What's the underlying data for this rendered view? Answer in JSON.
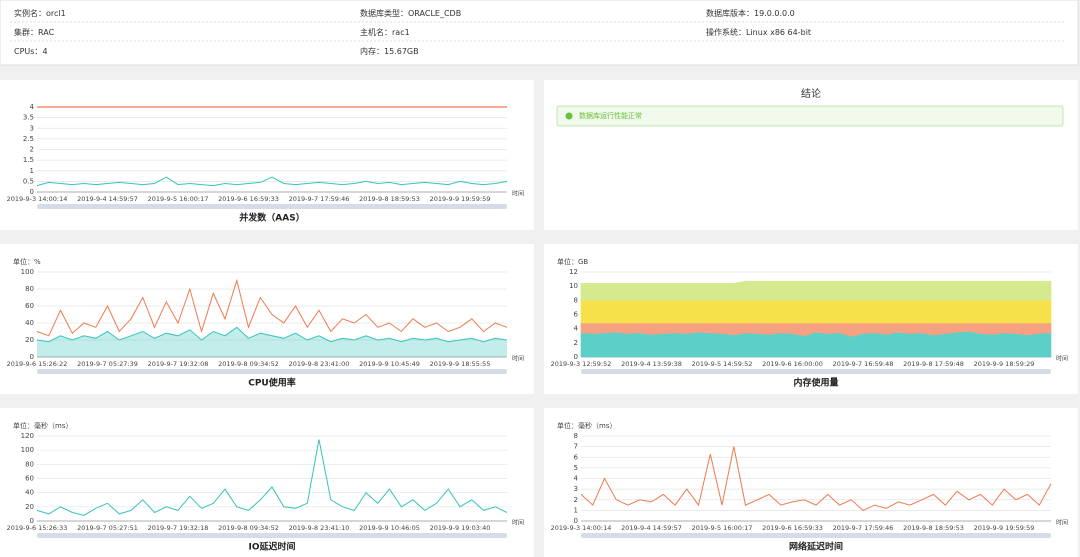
{
  "info": {
    "rows": [
      [
        {
          "label": "实例名：",
          "value": "orcl1"
        },
        {
          "label": "数据库类型：",
          "value": "ORACLE_CDB"
        },
        {
          "label": "数据库版本：",
          "value": "19.0.0.0.0"
        }
      ],
      [
        {
          "label": "集群：",
          "value": "RAC"
        },
        {
          "label": "主机名：",
          "value": "rac1"
        },
        {
          "label": "操作系统：",
          "value": "Linux x86 64-bit"
        }
      ],
      [
        {
          "label": "CPUs：",
          "value": "4"
        },
        {
          "label": "内存：",
          "value": "15.67GB"
        }
      ]
    ]
  },
  "conclusion": {
    "title": "结论",
    "message": "数据库运行性能正常"
  },
  "chart_data": [
    {
      "type": "line",
      "title": "并发数（AAS）",
      "xlabel": "时间",
      "categories": [
        "2019-9-3 14:00:14",
        null,
        null,
        null,
        null,
        null,
        "2019-9-4 14:59:57",
        null,
        null,
        null,
        null,
        null,
        "2019-9-5 16:00:17",
        null,
        null,
        null,
        null,
        null,
        "2019-9-6 16:59:33",
        null,
        null,
        null,
        null,
        null,
        "2019-9-7 17:59:46",
        null,
        null,
        null,
        null,
        null,
        "2019-9-8 18:59:53",
        null,
        null,
        null,
        null,
        null,
        "2019-9-9 19:59:59",
        null,
        null,
        null,
        null
      ],
      "series": [
        {
          "color": "#36c3bd",
          "values": [
            0.3,
            0.45,
            0.4,
            0.35,
            0.4,
            0.35,
            0.4,
            0.45,
            0.4,
            0.35,
            0.4,
            0.7,
            0.35,
            0.4,
            0.35,
            0.3,
            0.4,
            0.35,
            0.4,
            0.45,
            0.7,
            0.4,
            0.35,
            0.4,
            0.45,
            0.4,
            0.35,
            0.4,
            0.5,
            0.4,
            0.45,
            0.35,
            0.4,
            0.45,
            0.4,
            0.35,
            0.5,
            0.4,
            0.35,
            0.4,
            0.5
          ]
        }
      ],
      "hlines": [
        {
          "value": 4,
          "color": "#ef7a4e"
        }
      ],
      "ylim": [
        0,
        4
      ],
      "yticks": [
        0,
        0.5,
        1,
        1.5,
        2,
        2.5,
        3,
        3.5,
        4
      ],
      "grid": true
    },
    {
      "type": "line",
      "title": "CPU使用率",
      "xlabel": "时间",
      "unit": "单位：%",
      "categories": [
        "2019-9-6 15:26:22",
        null,
        null,
        null,
        null,
        null,
        "2019-9-7 05:27:39",
        null,
        null,
        null,
        null,
        null,
        "2019-9-7 19:32:08",
        null,
        null,
        null,
        null,
        null,
        "2019-9-8 09:34:52",
        null,
        null,
        null,
        null,
        null,
        "2019-9-8 23:41:00",
        null,
        null,
        null,
        null,
        null,
        "2019-9-9 10:45:49",
        null,
        null,
        null,
        null,
        null,
        "2019-9-9 18:55:55",
        null,
        null,
        null,
        null
      ],
      "series": [
        {
          "color": "#ef7a4e",
          "values": [
            30,
            25,
            55,
            28,
            40,
            35,
            60,
            30,
            45,
            70,
            35,
            65,
            40,
            80,
            30,
            75,
            45,
            90,
            35,
            70,
            50,
            40,
            60,
            35,
            55,
            30,
            45,
            40,
            50,
            35,
            40,
            30,
            45,
            35,
            40,
            30,
            35,
            45,
            30,
            40,
            35
          ]
        },
        {
          "color": "#36c3bd",
          "area": true,
          "values": [
            20,
            18,
            25,
            20,
            25,
            22,
            30,
            20,
            25,
            30,
            22,
            28,
            25,
            32,
            20,
            30,
            25,
            35,
            22,
            28,
            25,
            22,
            28,
            20,
            25,
            18,
            22,
            20,
            25,
            20,
            22,
            18,
            22,
            20,
            22,
            18,
            20,
            22,
            18,
            22,
            20
          ]
        }
      ],
      "ylim": [
        0,
        100
      ],
      "yticks": [
        0,
        20,
        40,
        60,
        80,
        100
      ],
      "grid": true
    },
    {
      "type": "stacked_area",
      "title": "内存使用量",
      "xlabel": "时间",
      "unit": "单位：GB",
      "categories": [
        "2019-9-3 12:59:52",
        null,
        null,
        null,
        null,
        null,
        "2019-9-4 13:59:38",
        null,
        null,
        null,
        null,
        null,
        "2019-9-5 14:59:52",
        null,
        null,
        null,
        null,
        null,
        "2019-9-6 16:00:00",
        null,
        null,
        null,
        null,
        null,
        "2019-9-7 16:59:48",
        null,
        null,
        null,
        null,
        null,
        "2019-9-8 17:59:48",
        null,
        null,
        null,
        null,
        null,
        "2019-9-9 18:59:29",
        null,
        null,
        null,
        null
      ],
      "series": [
        {
          "color": "#5ccfc9",
          "values": [
            3.4,
            3.3,
            3.4,
            3.5,
            3.3,
            3.4,
            3.2,
            3.3,
            3.4,
            3.3,
            3.5,
            3.4,
            3.3,
            3.1,
            3.4,
            3.3,
            3.2,
            3.4,
            3.3,
            3.0,
            3.5,
            3.3,
            3.4,
            2.9,
            3.3,
            3.4,
            3.2,
            3.5,
            3.3,
            3.4,
            3.1,
            3.3,
            3.5,
            3.6,
            3.3,
            3.2,
            3.4,
            3.3,
            3.1,
            3.3,
            3.4
          ]
        },
        {
          "color": "#f6a182",
          "values": [
            1.4,
            1.5,
            1.4,
            1.3,
            1.5,
            1.4,
            1.6,
            1.5,
            1.4,
            1.5,
            1.3,
            1.4,
            1.5,
            1.7,
            1.4,
            1.5,
            1.6,
            1.4,
            1.5,
            1.8,
            1.3,
            1.5,
            1.4,
            1.9,
            1.5,
            1.4,
            1.6,
            1.3,
            1.5,
            1.4,
            1.7,
            1.5,
            1.3,
            1.2,
            1.5,
            1.6,
            1.4,
            1.5,
            1.7,
            1.5,
            1.4
          ]
        },
        {
          "color": "#f7e14a",
          "values": [
            3.2,
            3.2,
            3.2,
            3.2,
            3.2,
            3.2,
            3.2,
            3.2,
            3.2,
            3.2,
            3.2,
            3.2,
            3.2,
            3.2,
            3.2,
            3.2,
            3.2,
            3.2,
            3.2,
            3.2,
            3.2,
            3.2,
            3.2,
            3.2,
            3.2,
            3.2,
            3.2,
            3.2,
            3.2,
            3.2,
            3.2,
            3.2,
            3.2,
            3.2,
            3.2,
            3.2,
            3.2,
            3.2,
            3.2,
            3.2,
            3.2
          ]
        },
        {
          "color": "#d5ea8f",
          "values": [
            2.4,
            2.4,
            2.4,
            2.4,
            2.4,
            2.4,
            2.4,
            2.4,
            2.4,
            2.4,
            2.4,
            2.4,
            2.4,
            2.4,
            2.7,
            2.7,
            2.7,
            2.7,
            2.7,
            2.7,
            2.7,
            2.7,
            2.7,
            2.7,
            2.7,
            2.7,
            2.7,
            2.7,
            2.7,
            2.7,
            2.7,
            2.7,
            2.7,
            2.7,
            2.7,
            2.7,
            2.7,
            2.7,
            2.7,
            2.7,
            2.7
          ]
        }
      ],
      "ylim": [
        0,
        12
      ],
      "yticks": [
        0,
        2,
        4,
        6,
        8,
        10,
        12
      ],
      "grid": true
    },
    {
      "type": "line",
      "title": "IO延迟时间",
      "xlabel": "时间",
      "unit": "单位：毫秒（ms）",
      "categories": [
        "2019-9-6 15:26:33",
        null,
        null,
        null,
        null,
        null,
        "2019-9-7 05:27:51",
        null,
        null,
        null,
        null,
        null,
        "2019-9-7 19:32:18",
        null,
        null,
        null,
        null,
        null,
        "2019-9-8 09:34:52",
        null,
        null,
        null,
        null,
        null,
        "2019-9-8 23:41:10",
        null,
        null,
        null,
        null,
        null,
        "2019-9-9 10:46:05",
        null,
        null,
        null,
        null,
        null,
        "2019-9-9 19:03:40",
        null,
        null,
        null,
        null
      ],
      "series": [
        {
          "color": "#36c3bd",
          "values": [
            15,
            10,
            20,
            12,
            8,
            18,
            25,
            10,
            15,
            30,
            12,
            20,
            15,
            35,
            18,
            25,
            45,
            20,
            15,
            30,
            48,
            20,
            18,
            25,
            115,
            30,
            20,
            15,
            40,
            25,
            45,
            20,
            30,
            15,
            25,
            45,
            20,
            30,
            15,
            20,
            12
          ]
        }
      ],
      "ylim": [
        0,
        120
      ],
      "yticks": [
        0,
        20,
        40,
        60,
        80,
        100,
        120
      ],
      "grid": true
    },
    {
      "type": "line",
      "title": "网络延迟时间",
      "xlabel": "时间",
      "unit": "单位：毫秒（ms）",
      "categories": [
        "2019-9-3 14:00:14",
        null,
        null,
        null,
        null,
        null,
        "2019-9-4 14:59:57",
        null,
        null,
        null,
        null,
        null,
        "2019-9-5 16:00:17",
        null,
        null,
        null,
        null,
        null,
        "2019-9-6 16:59:33",
        null,
        null,
        null,
        null,
        null,
        "2019-9-7 17:59:46",
        null,
        null,
        null,
        null,
        null,
        "2019-9-8 18:59:53",
        null,
        null,
        null,
        null,
        null,
        "2019-9-9 19:59:59",
        null,
        null,
        null,
        null
      ],
      "series": [
        {
          "color": "#ef7a4e",
          "values": [
            2.5,
            1.5,
            4,
            2,
            1.5,
            2,
            1.8,
            2.5,
            1.5,
            3,
            1.5,
            6.3,
            1.5,
            7,
            1.5,
            2,
            2.5,
            1.5,
            1.8,
            2,
            1.5,
            2.5,
            1.5,
            2,
            1,
            1.5,
            1.2,
            1.8,
            1.5,
            2,
            2.5,
            1.5,
            2.8,
            2,
            2.5,
            1.5,
            3,
            2,
            2.5,
            1.5,
            3.5
          ]
        }
      ],
      "ylim": [
        0,
        8
      ],
      "yticks": [
        0,
        1,
        2,
        3,
        4,
        5,
        6,
        7,
        8
      ],
      "grid": true
    }
  ]
}
